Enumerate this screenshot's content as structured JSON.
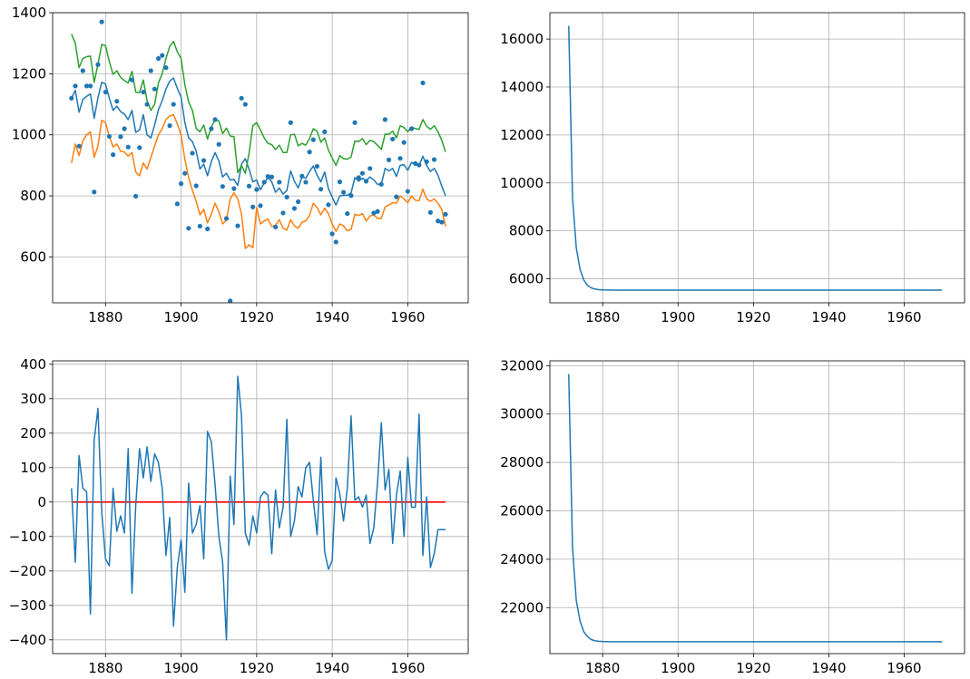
{
  "colors": {
    "series_blue": "#1f77b4",
    "series_orange": "#ff7f0e",
    "series_green": "#2ca02c",
    "zero_line": "#ff0000",
    "grid": "#b0b0b0"
  },
  "chart_data": [
    {
      "id": "nile-fit",
      "type": "line",
      "title": "",
      "xlabel": "",
      "ylabel": "",
      "xlim": [
        1866,
        1976
      ],
      "ylim": [
        450,
        1400
      ],
      "xticks": [
        1880,
        1900,
        1920,
        1940,
        1960
      ],
      "yticks": [
        600,
        800,
        1000,
        1200,
        1400
      ],
      "grid": true,
      "x_start": 1871,
      "scatter_values": [
        1120,
        1160,
        963,
        1210,
        1160,
        1160,
        813,
        1230,
        1370,
        1140,
        995,
        935,
        1110,
        994,
        1020,
        960,
        1180,
        799,
        958,
        1140,
        1100,
        1210,
        1150,
        1250,
        1260,
        1220,
        1030,
        1100,
        774,
        840,
        874,
        694,
        940,
        833,
        701,
        916,
        692,
        1020,
        1050,
        969,
        831,
        726,
        456,
        824,
        702,
        1120,
        1100,
        832,
        764,
        821,
        768,
        845,
        864,
        862,
        698,
        845,
        744,
        796,
        1040,
        759,
        781,
        865,
        845,
        944,
        984,
        897,
        822,
        1010,
        771,
        676,
        649,
        846,
        812,
        742,
        801,
        1040,
        860,
        874,
        848,
        890,
        744,
        749,
        838,
        1050,
        918,
        986,
        797,
        923,
        975,
        815,
        1020,
        906,
        901,
        1170,
        912,
        746,
        919,
        718,
        714,
        740
      ],
      "series": [
        {
          "name": "",
          "color": "series_blue",
          "values": [
            1120,
            1146,
            1074,
            1116,
            1126,
            1134,
            1054,
            1122,
            1172,
            1166,
            1120,
            1080,
            1094,
            1076,
            1068,
            1050,
            1080,
            1008,
            1016,
            1066,
            1000,
            990,
            1032,
            1082,
            1112,
            1150,
            1176,
            1186,
            1152,
            1124,
            1040,
            990,
            978,
            946,
            888,
            904,
            866,
            912,
            942,
            914,
            862,
            874,
            852,
            854,
            834,
            904,
            922,
            888,
            846,
            852,
            820,
            842,
            860,
            846,
            812,
            826,
            806,
            818,
            882,
            848,
            826,
            862,
            858,
            880,
            898,
            868,
            846,
            878,
            824,
            796,
            770,
            800,
            802,
            802,
            810,
            860,
            848,
            858,
            850,
            862,
            852,
            838,
            838,
            890,
            882,
            890,
            864,
            900,
            902,
            884,
            910,
            902,
            900,
            930,
            900,
            880,
            890,
            868,
            832,
            800
          ]
        },
        {
          "name": "",
          "color": "series_orange",
          "values": [
            908,
            970,
            932,
            980,
            1000,
            1010,
            926,
            964,
            1048,
            1040,
            996,
            960,
            970,
            946,
            944,
            930,
            942,
            878,
            866,
            908,
            888,
            926,
            964,
            1000,
            1020,
            1050,
            1062,
            1066,
            1036,
            1000,
            920,
            860,
            818,
            782,
            738,
            756,
            712,
            740,
            776,
            748,
            708,
            722,
            790,
            810,
            790,
            740,
            628,
            640,
            630,
            762,
            708,
            718,
            724,
            700,
            704,
            722,
            694,
            688,
            722,
            702,
            694,
            714,
            718,
            736,
            776,
            762,
            738,
            760,
            742,
            708,
            684,
            708,
            702,
            686,
            690,
            740,
            736,
            742,
            718,
            734,
            738,
            726,
            726,
            764,
            770,
            778,
            776,
            800,
            790,
            778,
            800,
            786,
            784,
            822,
            790,
            782,
            790,
            776,
            756,
            700
          ]
        },
        {
          "name": "",
          "color": "series_green",
          "values": [
            1330,
            1300,
            1220,
            1250,
            1256,
            1258,
            1172,
            1232,
            1296,
            1292,
            1240,
            1198,
            1210,
            1188,
            1178,
            1170,
            1208,
            1140,
            1138,
            1180,
            1112,
            1080,
            1100,
            1170,
            1200,
            1250,
            1290,
            1306,
            1272,
            1250,
            1164,
            1108,
            1080,
            1020,
            1010,
            1032,
            986,
            1026,
            1048,
            1046,
            1004,
            1022,
            996,
            994,
            876,
            900,
            874,
            940,
            1030,
            1040,
            1016,
            990,
            972,
            968,
            952,
            966,
            942,
            942,
            1000,
            1002,
            964,
            972,
            966,
            988,
            1020,
            1012,
            976,
            990,
            950,
            924,
            900,
            932,
            922,
            920,
            928,
            980,
            978,
            988,
            968,
            982,
            978,
            966,
            952,
            1002,
            1002,
            1012,
            990,
            1030,
            1024,
            1010,
            1026,
            1020,
            1018,
            1050,
            1028,
            1018,
            1030,
            1010,
            982,
            944
          ]
        }
      ]
    },
    {
      "id": "variance-1",
      "type": "line",
      "title": "",
      "xlabel": "",
      "ylabel": "",
      "xlim": [
        1866,
        1976
      ],
      "ylim": [
        5000,
        17100
      ],
      "xticks": [
        1880,
        1900,
        1920,
        1940,
        1960
      ],
      "yticks": [
        6000,
        8000,
        10000,
        12000,
        14000,
        16000
      ],
      "grid": true,
      "x_start": 1871,
      "series": [
        {
          "name": "",
          "color": "series_blue",
          "values": [
            16550,
            9400,
            7300,
            6400,
            5950,
            5720,
            5620,
            5570,
            5550,
            5540,
            5535,
            5532,
            5530,
            5530,
            5530,
            5530,
            5530,
            5530,
            5530,
            5530,
            5530,
            5530,
            5530,
            5530,
            5530,
            5530,
            5530,
            5530,
            5530,
            5530,
            5530,
            5530,
            5530,
            5530,
            5530,
            5530,
            5530,
            5530,
            5530,
            5530,
            5530,
            5530,
            5530,
            5530,
            5530,
            5530,
            5530,
            5530,
            5530,
            5530,
            5530,
            5530,
            5530,
            5530,
            5530,
            5530,
            5530,
            5530,
            5530,
            5530,
            5530,
            5530,
            5530,
            5530,
            5530,
            5530,
            5530,
            5530,
            5530,
            5530,
            5530,
            5530,
            5530,
            5530,
            5530,
            5530,
            5530,
            5530,
            5530,
            5530,
            5530,
            5530,
            5530,
            5530,
            5530,
            5530,
            5530,
            5530,
            5530,
            5530,
            5530,
            5530,
            5530,
            5530,
            5530,
            5530,
            5530,
            5530,
            5530,
            5530
          ]
        }
      ]
    },
    {
      "id": "residuals",
      "type": "line",
      "title": "",
      "xlabel": "",
      "ylabel": "",
      "xlim": [
        1866,
        1976
      ],
      "ylim": [
        -440,
        410
      ],
      "xticks": [
        1880,
        1900,
        1920,
        1940,
        1960
      ],
      "yticks": [
        -400,
        -300,
        -200,
        -100,
        0,
        100,
        200,
        300,
        400
      ],
      "grid": true,
      "x_start": 1871,
      "zero_line": 0,
      "series": [
        {
          "name": "",
          "color": "series_blue",
          "values": [
            40,
            -175,
            135,
            40,
            30,
            -325,
            180,
            272,
            -30,
            -165,
            -185,
            40,
            -85,
            -40,
            -90,
            155,
            -265,
            -10,
            155,
            70,
            160,
            60,
            140,
            115,
            40,
            -155,
            -45,
            -360,
            -190,
            -110,
            -262,
            55,
            -90,
            -65,
            -10,
            -165,
            205,
            175,
            50,
            -100,
            -175,
            -400,
            75,
            -65,
            365,
            250,
            -90,
            -125,
            -40,
            -90,
            15,
            30,
            20,
            -150,
            35,
            -75,
            -15,
            240,
            -100,
            -55,
            45,
            15,
            100,
            115,
            5,
            -95,
            130,
            -145,
            -195,
            -170,
            70,
            25,
            -55,
            40,
            250,
            5,
            15,
            -15,
            20,
            -120,
            -75,
            55,
            230,
            35,
            95,
            -120,
            20,
            90,
            -100,
            130,
            -15,
            -15,
            255,
            -155,
            15,
            -190,
            -150,
            -80,
            -80,
            -80
          ]
        }
      ]
    },
    {
      "id": "variance-2",
      "type": "line",
      "title": "",
      "xlabel": "",
      "ylabel": "",
      "xlim": [
        1866,
        1976
      ],
      "ylim": [
        20100,
        32200
      ],
      "xticks": [
        1880,
        1900,
        1920,
        1940,
        1960
      ],
      "yticks": [
        22000,
        24000,
        26000,
        28000,
        30000,
        32000
      ],
      "grid": true,
      "x_start": 1871,
      "series": [
        {
          "name": "",
          "color": "series_blue",
          "values": [
            31650,
            24500,
            22300,
            21450,
            21000,
            20800,
            20680,
            20630,
            20610,
            20600,
            20595,
            20592,
            20590,
            20590,
            20590,
            20590,
            20590,
            20590,
            20590,
            20590,
            20590,
            20590,
            20590,
            20590,
            20590,
            20590,
            20590,
            20590,
            20590,
            20590,
            20590,
            20590,
            20590,
            20590,
            20590,
            20590,
            20590,
            20590,
            20590,
            20590,
            20590,
            20590,
            20590,
            20590,
            20590,
            20590,
            20590,
            20590,
            20590,
            20590,
            20590,
            20590,
            20590,
            20590,
            20590,
            20590,
            20590,
            20590,
            20590,
            20590,
            20590,
            20590,
            20590,
            20590,
            20590,
            20590,
            20590,
            20590,
            20590,
            20590,
            20590,
            20590,
            20590,
            20590,
            20590,
            20590,
            20590,
            20590,
            20590,
            20590,
            20590,
            20590,
            20590,
            20590,
            20590,
            20590,
            20590,
            20590,
            20590,
            20590,
            20590,
            20590,
            20590,
            20590,
            20590,
            20590,
            20590,
            20590,
            20590,
            20590
          ]
        }
      ]
    }
  ]
}
